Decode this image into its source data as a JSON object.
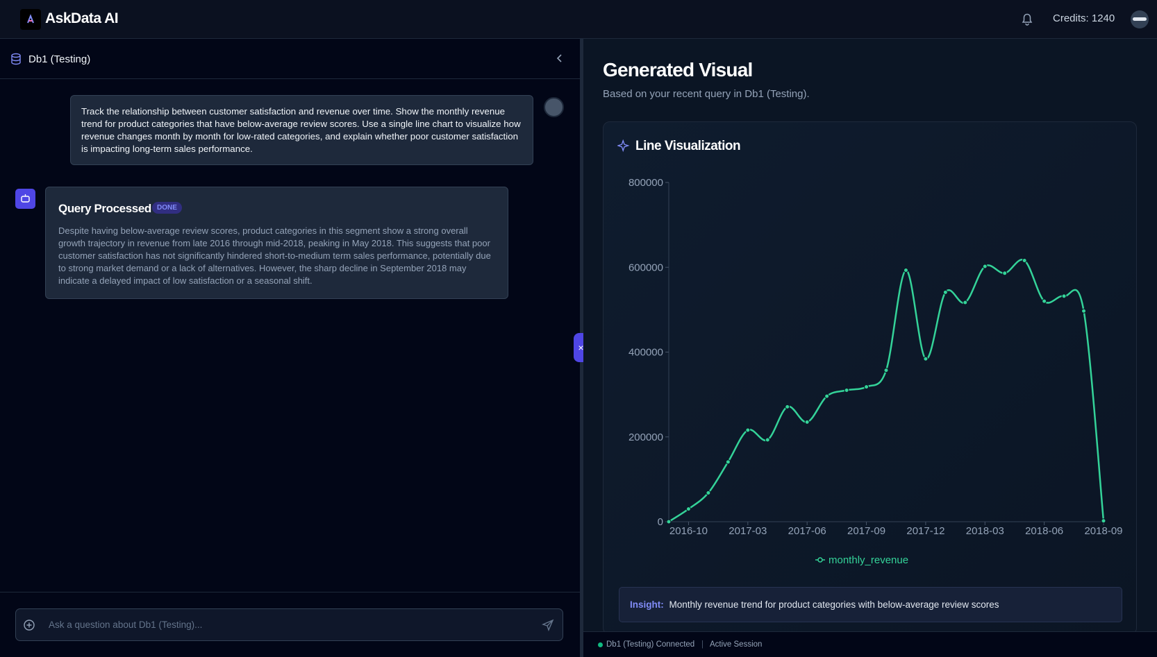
{
  "header": {
    "brand": "AskData AI",
    "credits": "Credits: 1240"
  },
  "sidebar": {
    "db_name": "Db1 (Testing)"
  },
  "chat": {
    "user_message": "Track the relationship between customer satisfaction and revenue over time. Show the monthly revenue trend for product categories that have below-average review scores. Use a single line chart to visualize how revenue changes month by month for low-rated categories, and explain whether poor customer satisfaction is impacting long-term sales performance.",
    "response_title": "Query Processed",
    "badge": "DONE",
    "response_text": "Despite having below-average review scores, product categories in this segment show a strong overall growth trajectory in revenue from late 2016 through mid-2018, peaking in May 2018. This suggests that poor customer satisfaction has not significantly hindered short-to-medium term sales performance, potentially due to strong market demand or a lack of alternatives. However, the sharp decline in September 2018 may indicate a delayed impact of low satisfaction or a seasonal shift.",
    "input_placeholder": "Ask a question about Db1 (Testing)..."
  },
  "panel": {
    "title": "Generated Visual",
    "subtitle": "Based on your recent query in Db1 (Testing).",
    "card_title": "Line Visualization",
    "insight_label": "Insight:",
    "insight_text": "Monthly revenue trend for product categories with below-average review scores"
  },
  "footer": {
    "status": "Db1 (Testing) Connected",
    "session": "Active Session"
  },
  "chart_data": {
    "type": "line",
    "categories": [
      null,
      "2016-10",
      null,
      null,
      "2017-03",
      null,
      null,
      "2017-06",
      null,
      null,
      "2017-09",
      null,
      null,
      "2017-12",
      null,
      null,
      "2018-03",
      null,
      null,
      "2018-06",
      null,
      null,
      "2018-09"
    ],
    "series": [
      {
        "name": "monthly_revenue",
        "color": "#34d399",
        "values": [
          0,
          30000,
          68000,
          141000,
          216000,
          193000,
          271000,
          235000,
          296000,
          310000,
          318000,
          357000,
          593000,
          384000,
          541000,
          517000,
          602000,
          586000,
          616000,
          520000,
          532000,
          497000,
          2000
        ]
      }
    ],
    "ylim": [
      0,
      800000
    ],
    "yticks": [
      0,
      200000,
      400000,
      600000,
      800000
    ]
  }
}
